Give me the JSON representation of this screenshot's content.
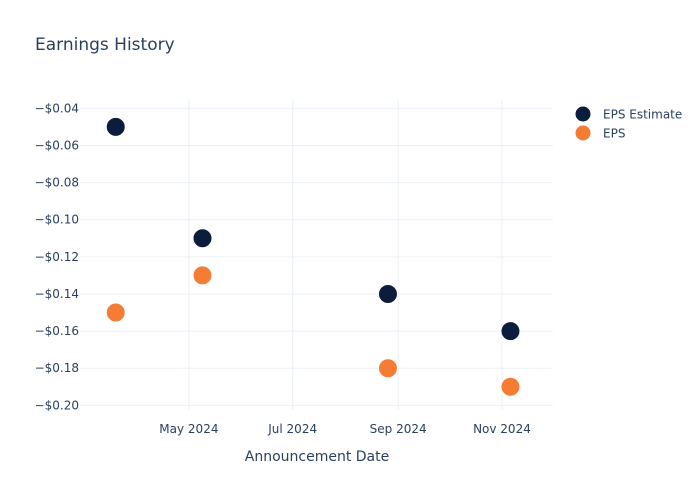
{
  "chart_data": {
    "type": "scatter",
    "title": "Earnings History",
    "xlabel": "Announcement Date",
    "ylabel": "",
    "x_ticks": [
      {
        "date": "2024-05-01",
        "label": "May 2024"
      },
      {
        "date": "2024-07-01",
        "label": "Jul 2024"
      },
      {
        "date": "2024-09-01",
        "label": "Sep 2024"
      },
      {
        "date": "2024-11-01",
        "label": "Nov 2024"
      }
    ],
    "y_ticks": [
      {
        "value": -0.04,
        "label": "−$0.04"
      },
      {
        "value": -0.06,
        "label": "−$0.06"
      },
      {
        "value": -0.08,
        "label": "−$0.08"
      },
      {
        "value": -0.1,
        "label": "−$0.10"
      },
      {
        "value": -0.12,
        "label": "−$0.12"
      },
      {
        "value": -0.14,
        "label": "−$0.14"
      },
      {
        "value": -0.16,
        "label": "−$0.16"
      },
      {
        "value": -0.18,
        "label": "−$0.18"
      },
      {
        "value": -0.2,
        "label": "−$0.20"
      }
    ],
    "xlim": [
      "2024-02-27",
      "2024-12-01"
    ],
    "ylim": [
      -0.2025,
      -0.0355
    ],
    "grid": true,
    "legend_position": "top-right",
    "series": [
      {
        "name": "EPS Estimate",
        "color": "#0c1c3c",
        "points": [
          {
            "x": "2024-03-19",
            "y": -0.05
          },
          {
            "x": "2024-05-09",
            "y": -0.11
          },
          {
            "x": "2024-08-26",
            "y": -0.14
          },
          {
            "x": "2024-11-06",
            "y": -0.16
          }
        ]
      },
      {
        "name": "EPS",
        "color": "#f47c34",
        "points": [
          {
            "x": "2024-03-19",
            "y": -0.15
          },
          {
            "x": "2024-05-09",
            "y": -0.13
          },
          {
            "x": "2024-08-26",
            "y": -0.18
          },
          {
            "x": "2024-11-06",
            "y": -0.19
          }
        ]
      }
    ]
  }
}
